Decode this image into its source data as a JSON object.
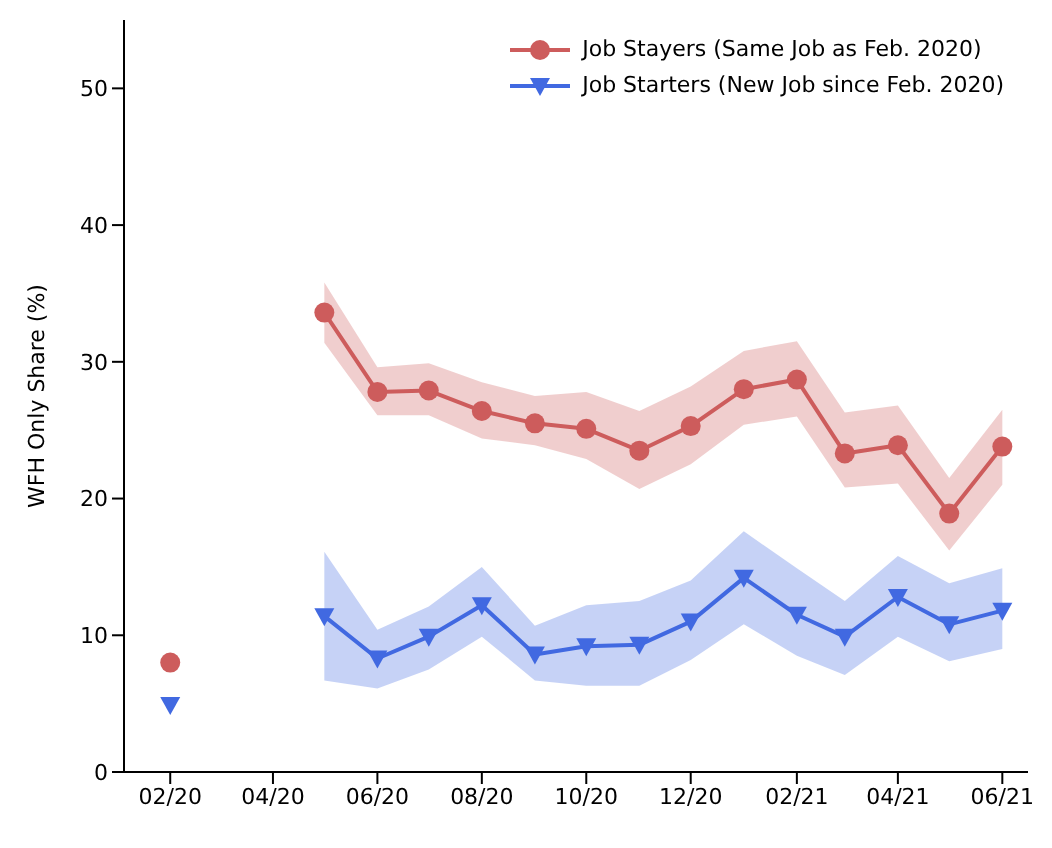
{
  "chart_data": {
    "type": "line",
    "ylabel": "WFH Only Share (%)",
    "x": [
      "2020-02",
      "2020-03",
      "2020-04",
      "2020-05",
      "2020-06",
      "2020-07",
      "2020-08",
      "2020-09",
      "2020-10",
      "2020-11",
      "2020-12",
      "2021-01",
      "2021-02",
      "2021-03",
      "2021-04",
      "2021-05",
      "2021-06"
    ],
    "series": [
      {
        "name": "Job Stayers (Same Job as Feb. 2020)",
        "color": "#cd5c5c",
        "marker": "circle",
        "values": [
          8.0,
          null,
          null,
          33.6,
          27.8,
          27.9,
          26.4,
          25.5,
          25.1,
          23.5,
          25.3,
          28.0,
          28.7,
          23.3,
          23.9,
          18.9,
          23.8
        ],
        "lower": [
          null,
          null,
          null,
          31.4,
          26.1,
          26.1,
          24.4,
          23.9,
          22.9,
          20.7,
          22.5,
          25.4,
          26.0,
          20.8,
          21.1,
          16.2,
          21.0
        ],
        "upper": [
          null,
          null,
          null,
          35.8,
          29.6,
          29.9,
          28.5,
          27.5,
          27.8,
          26.4,
          28.2,
          30.8,
          31.5,
          26.3,
          26.8,
          21.5,
          26.5
        ]
      },
      {
        "name": "Job Starters (New Job since Feb. 2020)",
        "color": "#4169e1",
        "marker": "triangle",
        "values": [
          4.9,
          null,
          null,
          11.4,
          8.3,
          9.9,
          12.2,
          8.6,
          9.2,
          9.3,
          11.0,
          14.2,
          11.5,
          9.9,
          12.8,
          10.8,
          11.8
        ],
        "lower": [
          null,
          null,
          null,
          6.7,
          6.1,
          7.5,
          9.9,
          6.7,
          6.3,
          6.3,
          8.2,
          10.8,
          8.5,
          7.1,
          9.9,
          8.1,
          9.0
        ],
        "upper": [
          null,
          null,
          null,
          16.1,
          10.4,
          12.1,
          15.0,
          10.7,
          12.2,
          12.5,
          14.0,
          17.6,
          14.9,
          12.5,
          15.8,
          13.8,
          14.9
        ]
      }
    ],
    "xlim": [
      "2020-01-05",
      "2021-06-16"
    ],
    "xticks": [
      {
        "value": "2020-02",
        "label": "02/20"
      },
      {
        "value": "2020-04",
        "label": "04/20"
      },
      {
        "value": "2020-06",
        "label": "06/20"
      },
      {
        "value": "2020-08",
        "label": "08/20"
      },
      {
        "value": "2020-10",
        "label": "10/20"
      },
      {
        "value": "2020-12",
        "label": "12/20"
      },
      {
        "value": "2021-02",
        "label": "02/21"
      },
      {
        "value": "2021-04",
        "label": "04/21"
      },
      {
        "value": "2021-06",
        "label": "06/21"
      }
    ],
    "ylim": [
      0,
      55
    ],
    "yticks": [
      0,
      10,
      20,
      30,
      40,
      50
    ],
    "grid": false,
    "legend": "top right",
    "line_style": "solid"
  }
}
